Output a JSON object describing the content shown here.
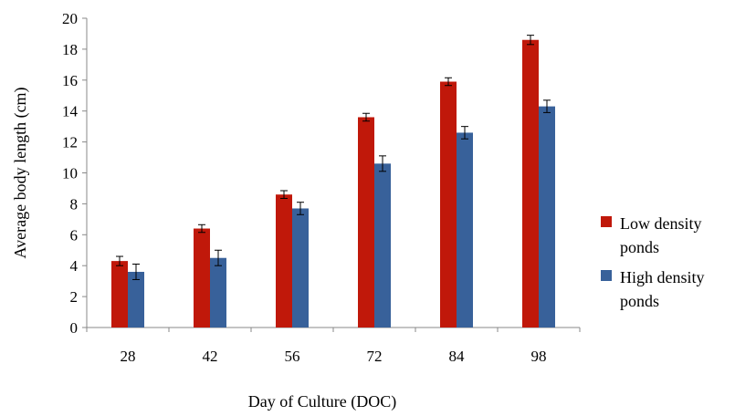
{
  "chart_data": {
    "type": "bar",
    "title": "",
    "xlabel": "Day of Culture (DOC)",
    "ylabel": "Average body length (cm)",
    "categories": [
      "28",
      "42",
      "56",
      "72",
      "84",
      "98"
    ],
    "ylim": [
      0,
      20
    ],
    "yticks": [
      0,
      2,
      4,
      6,
      8,
      10,
      12,
      14,
      16,
      18,
      20
    ],
    "grid": false,
    "legend_position": "right",
    "series": [
      {
        "name": "Low density ponds",
        "legend_lines": [
          "Low density",
          "ponds"
        ],
        "color": "#c0180a",
        "values": [
          4.3,
          6.4,
          8.6,
          13.6,
          15.9,
          18.6
        ],
        "errors": [
          0.3,
          0.25,
          0.25,
          0.25,
          0.25,
          0.3
        ]
      },
      {
        "name": "High density ponds",
        "legend_lines": [
          "High density",
          "ponds"
        ],
        "color": "#38619a",
        "values": [
          3.6,
          4.5,
          7.7,
          10.6,
          12.6,
          14.3
        ],
        "errors": [
          0.5,
          0.5,
          0.4,
          0.5,
          0.4,
          0.4
        ]
      }
    ]
  }
}
